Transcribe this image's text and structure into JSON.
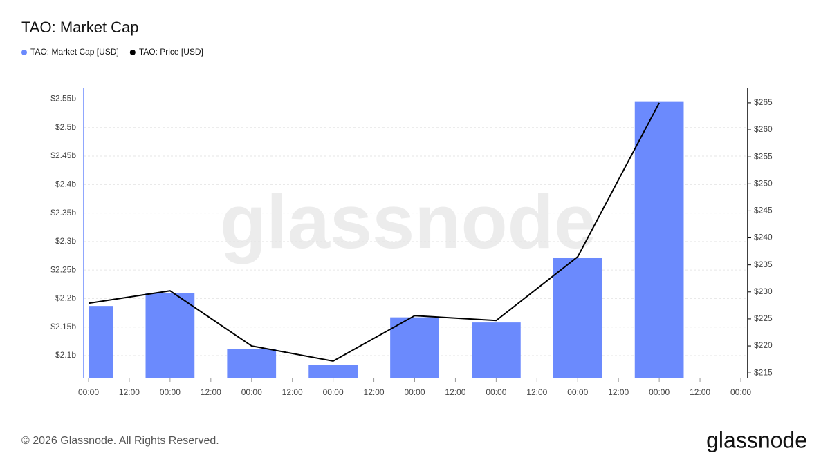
{
  "chart_data": {
    "type": "bar",
    "title": "TAO: Market Cap",
    "x": [
      0,
      24,
      48,
      72,
      96,
      120,
      144,
      168
    ],
    "xlim": [
      0,
      192
    ],
    "xticks": [
      {
        "value": 0,
        "label": "00:00"
      },
      {
        "value": 12,
        "label": "12:00"
      },
      {
        "value": 24,
        "label": "00:00"
      },
      {
        "value": 36,
        "label": "12:00"
      },
      {
        "value": 48,
        "label": "00:00"
      },
      {
        "value": 60,
        "label": "12:00"
      },
      {
        "value": 72,
        "label": "00:00"
      },
      {
        "value": 84,
        "label": "12:00"
      },
      {
        "value": 96,
        "label": "00:00"
      },
      {
        "value": 108,
        "label": "12:00"
      },
      {
        "value": 120,
        "label": "00:00"
      },
      {
        "value": 132,
        "label": "12:00"
      },
      {
        "value": 144,
        "label": "00:00"
      },
      {
        "value": 156,
        "label": "12:00"
      },
      {
        "value": 168,
        "label": "00:00"
      },
      {
        "value": 180,
        "label": "12:00"
      },
      {
        "value": 192,
        "label": "00:00"
      }
    ],
    "series": [
      {
        "name": "TAO: Market Cap [USD]",
        "type": "bar",
        "color": "#6b8afd",
        "values": [
          2.187,
          2.21,
          2.112,
          2.084,
          2.167,
          2.158,
          2.272,
          2.545
        ]
      },
      {
        "name": "TAO: Price [USD]",
        "type": "line",
        "axis": "y2",
        "color": "#000000",
        "values": [
          227.9,
          230.2,
          220.0,
          217.2,
          225.6,
          224.7,
          236.5,
          265.0
        ]
      }
    ],
    "ylim": [
      2.06,
      2.57
    ],
    "yticks": [
      {
        "value": 2.1,
        "label": "$2.1b"
      },
      {
        "value": 2.15,
        "label": "$2.15b"
      },
      {
        "value": 2.2,
        "label": "$2.2b"
      },
      {
        "value": 2.25,
        "label": "$2.25b"
      },
      {
        "value": 2.3,
        "label": "$2.3b"
      },
      {
        "value": 2.35,
        "label": "$2.35b"
      },
      {
        "value": 2.4,
        "label": "$2.4b"
      },
      {
        "value": 2.45,
        "label": "$2.45b"
      },
      {
        "value": 2.5,
        "label": "$2.5b"
      },
      {
        "value": 2.55,
        "label": "$2.55b"
      }
    ],
    "y2lim": [
      214,
      267.8
    ],
    "y2ticks": [
      {
        "value": 215,
        "label": "$215"
      },
      {
        "value": 220,
        "label": "$220"
      },
      {
        "value": 225,
        "label": "$225"
      },
      {
        "value": 230,
        "label": "$230"
      },
      {
        "value": 235,
        "label": "$235"
      },
      {
        "value": 240,
        "label": "$240"
      },
      {
        "value": 245,
        "label": "$245"
      },
      {
        "value": 250,
        "label": "$250"
      },
      {
        "value": 255,
        "label": "$255"
      },
      {
        "value": 260,
        "label": "$260"
      },
      {
        "value": 265,
        "label": "$265"
      }
    ],
    "grid": true,
    "footer": "© 2026 Glassnode. All Rights Reserved.",
    "brand": "glassnode"
  }
}
